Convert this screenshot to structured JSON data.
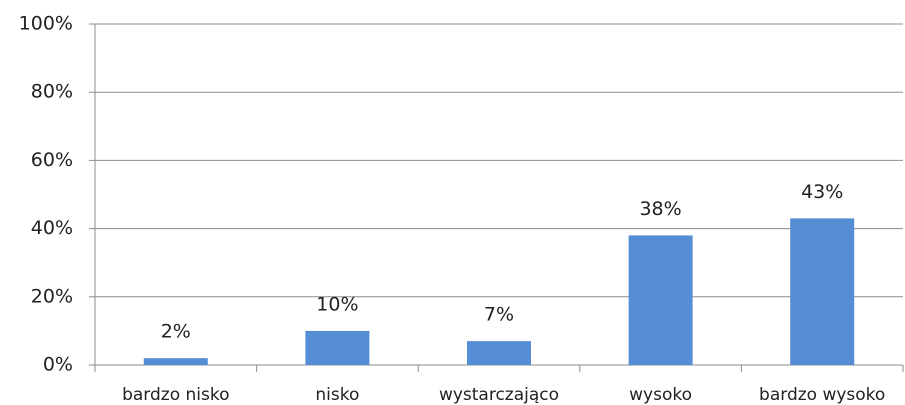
{
  "chart_data": {
    "type": "bar",
    "categories": [
      "bardzo nisko",
      "nisko",
      "wystarczająco",
      "wysoko",
      "bardzo wysoko"
    ],
    "values": [
      2,
      10,
      7,
      38,
      43
    ],
    "value_labels": [
      "2%",
      "10%",
      "7%",
      "38%",
      "43%"
    ],
    "color": "#558ed5",
    "ylim": [
      0,
      100
    ],
    "yticks": [
      {
        "value": 0,
        "label": "0%"
      },
      {
        "value": 20,
        "label": "20%"
      },
      {
        "value": 40,
        "label": "40%"
      },
      {
        "value": 60,
        "label": "60%"
      },
      {
        "value": 80,
        "label": "80%"
      },
      {
        "value": 100,
        "label": "100%"
      }
    ],
    "grid": true
  }
}
